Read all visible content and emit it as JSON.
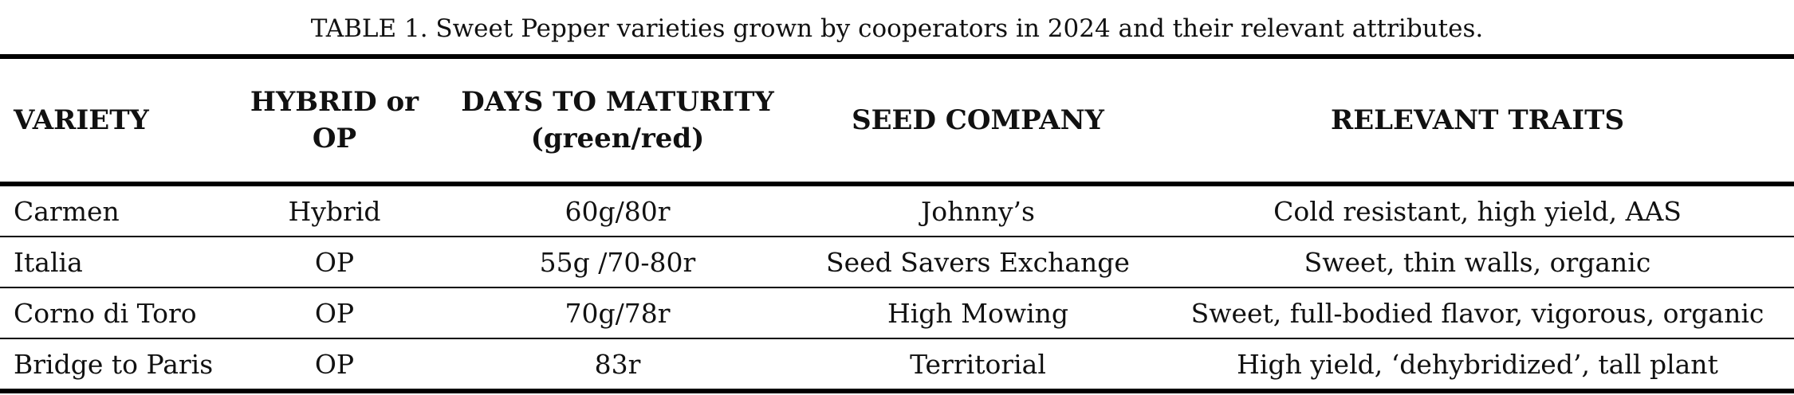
{
  "table": {
    "title": "TABLE  1. Sweet Pepper varieties grown by cooperators in 2024 and their relevant attributes.",
    "columns": [
      [
        "VARIETY"
      ],
      [
        "HYBRID or",
        "OP"
      ],
      [
        "DAYS TO MATURITY",
        "(green/red)"
      ],
      [
        "SEED COMPANY"
      ],
      [
        "RELEVANT TRAITS"
      ]
    ],
    "rows": [
      [
        "Carmen",
        "Hybrid",
        "60g/80r",
        "Johnny’s",
        "Cold resistant, high yield, AAS"
      ],
      [
        "Italia",
        "OP",
        "55g /70-80r",
        "Seed Savers Exchange",
        "Sweet, thin walls, organic"
      ],
      [
        "Corno di Toro",
        "OP",
        "70g/78r",
        "High Mowing",
        "Sweet, full-bodied flavor, vigorous, organic"
      ],
      [
        "Bridge to Paris",
        "OP",
        "83r",
        "Territorial",
        "High yield, ‘dehybridized’, tall plant"
      ]
    ]
  }
}
